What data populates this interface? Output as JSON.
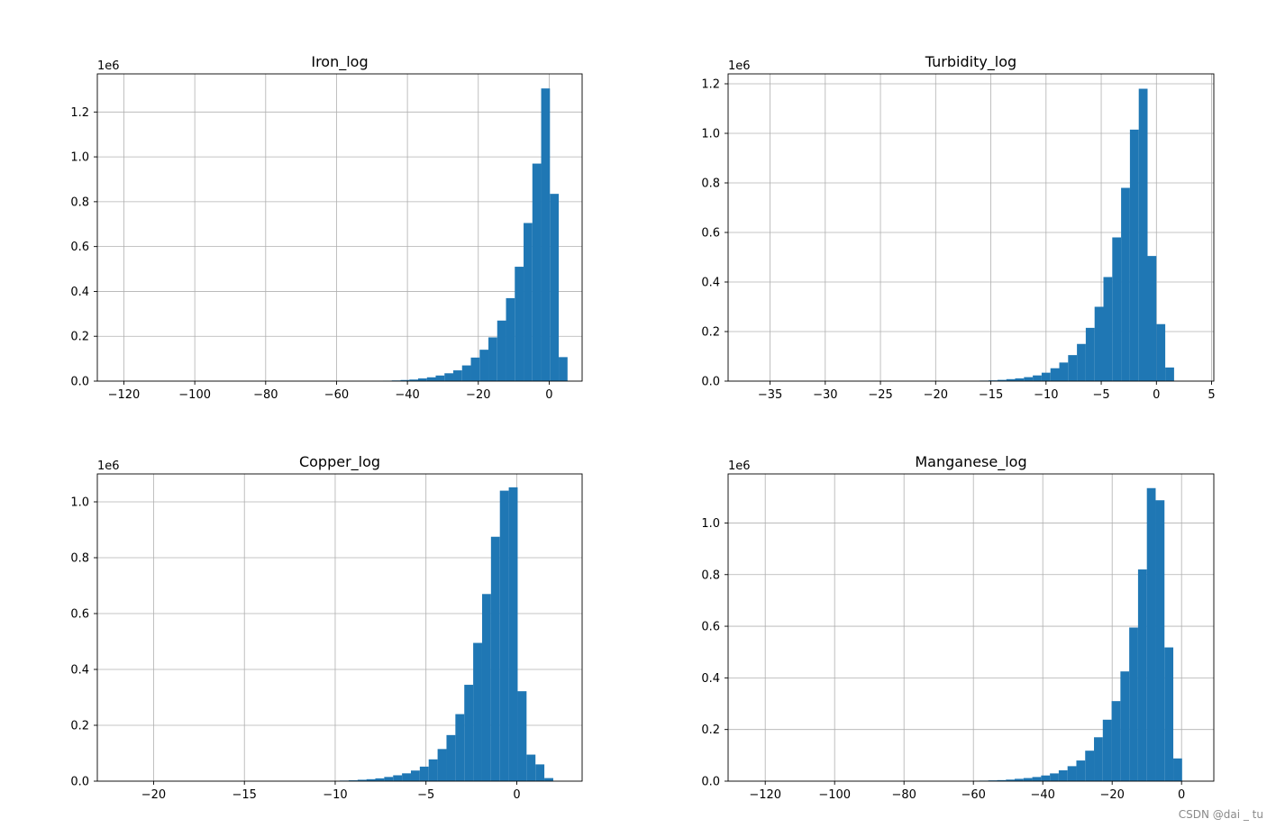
{
  "bar_color": "#1f77b4",
  "grid_color": "#b0b0b0",
  "watermark": "CSDN @dai _ tu",
  "chart_data": [
    {
      "type": "bar",
      "title": "Iron_log",
      "xlabel": "",
      "ylabel": "",
      "y_multiplier": "1e6",
      "grid": true,
      "xlim": [
        -127.5,
        9.3
      ],
      "ylim": [
        0,
        1.37
      ],
      "xticks": [
        -120,
        -100,
        -80,
        -60,
        -40,
        -20,
        0
      ],
      "xtick_labels": [
        "−120",
        "−100",
        "−80",
        "−60",
        "−40",
        "−20",
        "0"
      ],
      "yticks": [
        0.0,
        0.2,
        0.4,
        0.6,
        0.8,
        1.0,
        1.2
      ],
      "ytick_labels": [
        "0.0",
        "0.2",
        "0.4",
        "0.6",
        "0.8",
        "1.0",
        "1.2"
      ],
      "bin_start": -121.3,
      "bin_width": 2.48,
      "values": [
        0,
        0,
        0,
        0,
        0,
        0,
        0,
        0,
        0,
        0,
        0,
        0,
        0,
        0,
        0,
        0,
        0,
        0,
        0,
        0,
        0,
        0,
        0,
        0,
        0,
        0,
        0,
        0,
        0,
        0,
        0.002,
        0.003,
        0.005,
        0.007,
        0.012,
        0.017,
        0.025,
        0.035,
        0.048,
        0.07,
        0.105,
        0.14,
        0.195,
        0.27,
        0.37,
        0.51,
        0.705,
        0.97,
        1.305,
        0.835,
        0.107
      ]
    },
    {
      "type": "bar",
      "title": "Turbidity_log",
      "xlabel": "",
      "ylabel": "",
      "y_multiplier": "1e6",
      "grid": true,
      "xlim": [
        -38.8,
        5.2
      ],
      "ylim": [
        0,
        1.24
      ],
      "xticks": [
        -35,
        -30,
        -25,
        -20,
        -15,
        -10,
        -5,
        0,
        5
      ],
      "xtick_labels": [
        "−35",
        "−30",
        "−25",
        "−20",
        "−15",
        "−10",
        "−5",
        "0",
        "5"
      ],
      "yticks": [
        0.0,
        0.2,
        0.4,
        0.6,
        0.8,
        1.0,
        1.2
      ],
      "ytick_labels": [
        "0.0",
        "0.2",
        "0.4",
        "0.6",
        "0.8",
        "1.0",
        "1.2"
      ],
      "bin_start": -36.8,
      "bin_width": 0.8,
      "values": [
        0,
        0,
        0,
        0,
        0,
        0,
        0,
        0,
        0,
        0,
        0,
        0,
        0,
        0,
        0,
        0,
        0,
        0,
        0,
        0,
        0,
        0,
        0,
        0,
        0,
        0,
        0.002,
        0.003,
        0.005,
        0.008,
        0.011,
        0.016,
        0.023,
        0.034,
        0.052,
        0.075,
        0.105,
        0.15,
        0.215,
        0.3,
        0.42,
        0.58,
        0.78,
        1.015,
        1.18,
        0.505,
        0.23,
        0.055
      ]
    },
    {
      "type": "bar",
      "title": "Copper_log",
      "xlabel": "",
      "ylabel": "",
      "y_multiplier": "1e6",
      "grid": true,
      "xlim": [
        -23.1,
        3.6
      ],
      "ylim": [
        0,
        1.1
      ],
      "xticks": [
        -20,
        -15,
        -10,
        -5,
        0
      ],
      "xtick_labels": [
        "−20",
        "−15",
        "−10",
        "−5",
        "0"
      ],
      "yticks": [
        0.0,
        0.2,
        0.4,
        0.6,
        0.8,
        1.0
      ],
      "ytick_labels": [
        "0.0",
        "0.2",
        "0.4",
        "0.6",
        "0.8",
        "1.0"
      ],
      "bin_start": -22.0,
      "bin_width": 0.49,
      "values": [
        0,
        0,
        0,
        0,
        0,
        0,
        0,
        0,
        0,
        0,
        0,
        0,
        0,
        0,
        0,
        0,
        0,
        0,
        0,
        0,
        0,
        0,
        0,
        0,
        0,
        0.002,
        0.003,
        0.005,
        0.007,
        0.01,
        0.015,
        0.021,
        0.028,
        0.038,
        0.052,
        0.078,
        0.115,
        0.165,
        0.24,
        0.345,
        0.495,
        0.67,
        0.875,
        1.04,
        1.052,
        0.322,
        0.095,
        0.06,
        0.011
      ]
    },
    {
      "type": "bar",
      "title": "Manganese_log",
      "xlabel": "",
      "ylabel": "",
      "y_multiplier": "1e6",
      "grid": true,
      "xlim": [
        -130.7,
        9.3
      ],
      "ylim": [
        0,
        1.19
      ],
      "xticks": [
        -120,
        -100,
        -80,
        -60,
        -40,
        -20,
        0
      ],
      "xtick_labels": [
        "−120",
        "−100",
        "−80",
        "−60",
        "−40",
        "−20",
        "0"
      ],
      "yticks": [
        0.0,
        0.2,
        0.4,
        0.6,
        0.8,
        1.0
      ],
      "ytick_labels": [
        "0.0",
        "0.2",
        "0.4",
        "0.6",
        "0.8",
        "1.0"
      ],
      "bin_start": -124.3,
      "bin_width": 2.54,
      "values": [
        0,
        0,
        0,
        0,
        0,
        0,
        0,
        0,
        0,
        0,
        0,
        0,
        0,
        0,
        0,
        0,
        0,
        0,
        0,
        0,
        0,
        0,
        0,
        0,
        0,
        0,
        0.002,
        0.003,
        0.004,
        0.006,
        0.009,
        0.012,
        0.016,
        0.022,
        0.03,
        0.042,
        0.058,
        0.08,
        0.118,
        0.17,
        0.238,
        0.31,
        0.425,
        0.595,
        0.82,
        1.135,
        1.088,
        0.518,
        0.088
      ]
    }
  ]
}
